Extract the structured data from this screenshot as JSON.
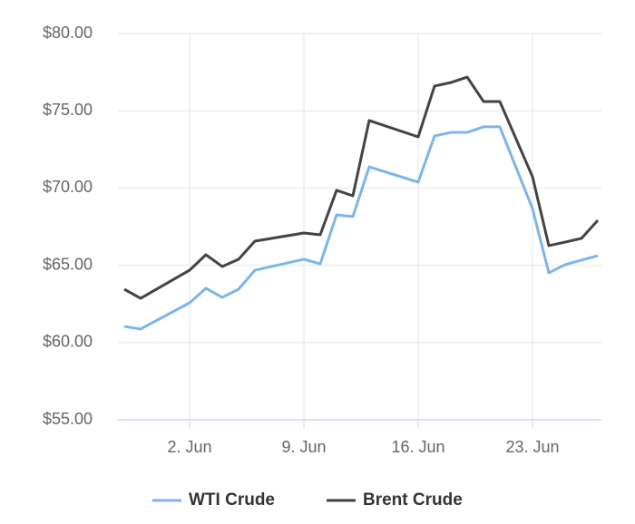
{
  "chart_data": {
    "type": "line",
    "x": [
      "29. May",
      "30. May",
      "2. Jun",
      "3. Jun",
      "4. Jun",
      "5. Jun",
      "6. Jun",
      "9. Jun",
      "10. Jun",
      "11. Jun",
      "12. Jun",
      "13. Jun",
      "16. Jun",
      "17. Jun",
      "18. Jun",
      "19. Jun",
      "20. Jun",
      "21. Jun",
      "23. Jun",
      "24. Jun",
      "25. Jun",
      "26. Jun",
      "27. Jun"
    ],
    "series": [
      {
        "name": "WTI Crude",
        "color": "#7cb5ec",
        "values": [
          61.04,
          60.87,
          62.57,
          63.51,
          62.92,
          63.45,
          64.68,
          65.39,
          65.09,
          68.26,
          68.15,
          71.37,
          70.38,
          73.37,
          73.6,
          73.6,
          73.96,
          73.96,
          68.67,
          64.51,
          65.04,
          65.33,
          65.62
        ]
      },
      {
        "name": "Brent Crude",
        "color": "#434348",
        "values": [
          63.45,
          62.86,
          64.68,
          65.68,
          64.92,
          65.39,
          66.56,
          67.09,
          66.97,
          69.85,
          69.5,
          74.37,
          73.31,
          76.6,
          76.83,
          77.18,
          75.6,
          75.6,
          70.73,
          66.27,
          66.5,
          66.74,
          67.91
        ]
      }
    ],
    "xlim": [
      "29. May",
      "27. Jun"
    ],
    "xticks": [
      "2. Jun",
      "9. Jun",
      "16. Jun",
      "23. Jun"
    ],
    "ylim": [
      55,
      80
    ],
    "yticks": [
      {
        "value": 55,
        "label": "$55.00"
      },
      {
        "value": 60,
        "label": "$60.00"
      },
      {
        "value": 65,
        "label": "$65.00"
      },
      {
        "value": 70,
        "label": "$70.00"
      },
      {
        "value": 75,
        "label": "$75.00"
      },
      {
        "value": 80,
        "label": "$80.00"
      }
    ],
    "grid": true,
    "legend": "bottom"
  }
}
